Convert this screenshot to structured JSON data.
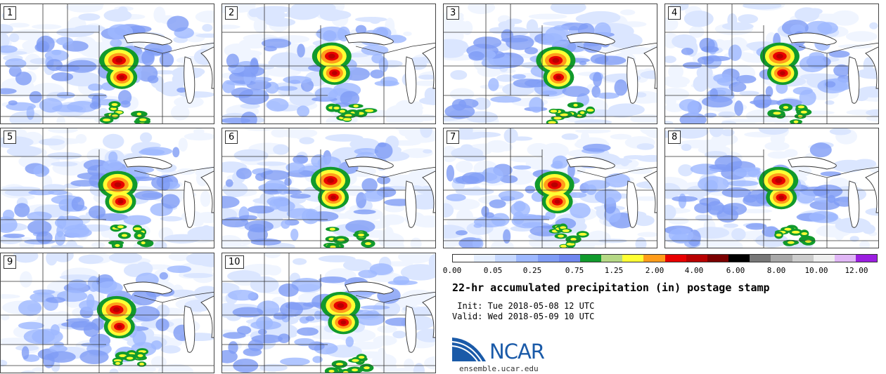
{
  "panels": [
    {
      "label": "1"
    },
    {
      "label": "2"
    },
    {
      "label": "3"
    },
    {
      "label": "4"
    },
    {
      "label": "5"
    },
    {
      "label": "6"
    },
    {
      "label": "7"
    },
    {
      "label": "8"
    },
    {
      "label": "9"
    },
    {
      "label": "10"
    }
  ],
  "colorbar": {
    "colors": [
      "#ffffff",
      "#e6efff",
      "#c6d8ff",
      "#9db8ff",
      "#7f9cf5",
      "#6f87ee",
      "#119a2c",
      "#b5d884",
      "#ffff33",
      "#ff9c1a",
      "#e80000",
      "#b80000",
      "#7a0000",
      "#000000",
      "#777777",
      "#a8a8a8",
      "#cccccc",
      "#eeeeee",
      "#e0b6f5",
      "#9b1ee0"
    ],
    "tick_labels": [
      "0.00",
      "0.05",
      "0.25",
      "0.75",
      "1.25",
      "2.00",
      "4.00",
      "6.00",
      "8.00",
      "10.00",
      "12.00"
    ]
  },
  "title": "22-hr accumulated precipitation (in) postage stamp",
  "init": " Init: Tue 2018-05-08 12 UTC",
  "valid": "Valid: Wed 2018-05-09 10 UTC",
  "logo": {
    "text": "NCAR",
    "url": "ensemble.ucar.edu",
    "color": "#1a5aa8"
  }
}
